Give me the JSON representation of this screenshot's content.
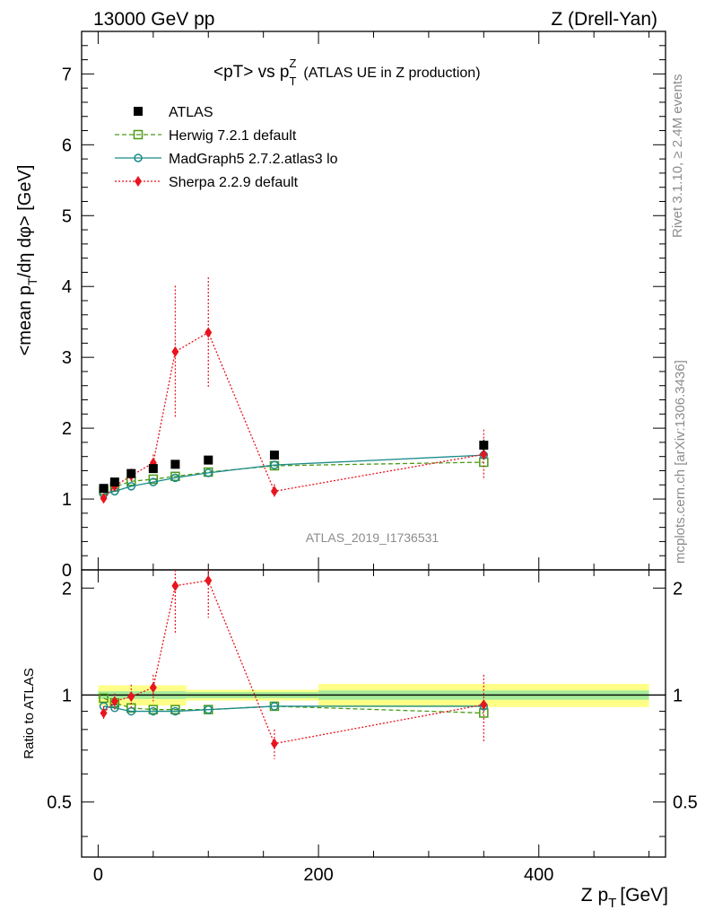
{
  "header": {
    "left": "13000 GeV pp",
    "right": "Z (Drell-Yan)"
  },
  "side_labels": {
    "rivet": "Rivet 3.1.10, ≥ 2.4M events",
    "mcplots": "mcplots.cern.ch [arXiv:1306.3436]"
  },
  "chart_data": {
    "type": "line",
    "title_main": "<pT> vs p",
    "title_sup": "Z",
    "title_sub": "T",
    "title_rest": "(ATLAS UE in Z production)",
    "watermark": "ATLAS_2019_I1736531",
    "ylabel_parts": {
      "a": "<mean p",
      "a_sub": "T",
      "b": "/dη dφ> [GeV]"
    },
    "ratio_ylabel": "Ratio to ATLAS",
    "xlabel_parts": {
      "a": "Z p",
      "a_sub": "T",
      "b": "[GeV]"
    },
    "x_range": [
      -15,
      515
    ],
    "ylim_main": [
      0,
      7.6
    ],
    "ylim_ratio": [
      0.35,
      2.25
    ],
    "x_ticks": [
      "0",
      "200",
      "400"
    ],
    "x_tick_values": [
      0,
      200,
      400
    ],
    "y_ticks_main": [
      "0",
      "1",
      "2",
      "3",
      "4",
      "5",
      "6",
      "7"
    ],
    "y_tick_values_main": [
      0,
      1,
      2,
      3,
      4,
      5,
      6,
      7
    ],
    "y_ticks_ratio": [
      "0.5",
      "1",
      "2"
    ],
    "y_tick_values_ratio": [
      0.5,
      1,
      2
    ],
    "bin_centers": [
      5,
      15,
      30,
      50,
      70,
      100,
      160,
      350
    ],
    "band_segments": [
      {
        "x0": 0,
        "x1": 80,
        "inner": 0.025,
        "outer": 0.065
      },
      {
        "x0": 80,
        "x1": 200,
        "inner": 0.02,
        "outer": 0.035
      },
      {
        "x0": 200,
        "x1": 500,
        "inner": 0.03,
        "outer": 0.075
      }
    ],
    "series": [
      {
        "name": "ATLAS",
        "color": "#000000",
        "marker": "square-filled",
        "line": "none",
        "y": [
          1.15,
          1.24,
          1.36,
          1.43,
          1.49,
          1.55,
          1.62,
          1.76
        ],
        "err": [
          0.03,
          0.03,
          0.03,
          0.04,
          0.04,
          0.04,
          0.05,
          0.08
        ]
      },
      {
        "name": "Herwig 7.2.1 default",
        "color": "#4b9b14",
        "marker": "square-open",
        "line": "dashed",
        "y": [
          1.12,
          1.17,
          1.25,
          1.28,
          1.32,
          1.38,
          1.47,
          1.52
        ],
        "err": [
          0,
          0,
          0,
          0,
          0,
          0,
          0,
          0
        ]
      },
      {
        "name": "MadGraph5 2.7.2.atlas3 lo",
        "color": "#1a8a8a",
        "marker": "circle-open",
        "line": "solid",
        "y": [
          1.07,
          1.11,
          1.18,
          1.24,
          1.3,
          1.37,
          1.48,
          1.62
        ],
        "err": [
          0,
          0,
          0,
          0,
          0,
          0,
          0,
          0
        ]
      },
      {
        "name": "Sherpa 2.2.9 default",
        "color": "#e8141e",
        "marker": "diamond-filled",
        "line": "dotted",
        "y": [
          1.01,
          1.18,
          1.33,
          1.51,
          3.08,
          3.35,
          1.11,
          1.63
        ],
        "err": [
          0.05,
          0.07,
          0.1,
          0.12,
          0.93,
          0.78,
          0.1,
          0.35
        ]
      }
    ],
    "ratio_series": [
      {
        "name": "Herwig 7.2.1 default",
        "y": [
          0.98,
          0.95,
          0.92,
          0.91,
          0.91,
          0.91,
          0.93,
          0.89
        ],
        "err": [
          0,
          0,
          0,
          0,
          0,
          0,
          0,
          0
        ]
      },
      {
        "name": "MadGraph5 2.7.2.atlas3 lo",
        "y": [
          0.93,
          0.92,
          0.9,
          0.9,
          0.9,
          0.91,
          0.93,
          0.93
        ],
        "err": [
          0,
          0,
          0,
          0,
          0,
          0,
          0,
          0
        ]
      },
      {
        "name": "Sherpa 2.2.9 default",
        "y": [
          0.89,
          0.96,
          0.99,
          1.05,
          2.03,
          2.1,
          0.73,
          0.94
        ],
        "err": [
          0.04,
          0.05,
          0.08,
          0.09,
          0.55,
          0.45,
          0.07,
          0.2
        ]
      }
    ]
  }
}
